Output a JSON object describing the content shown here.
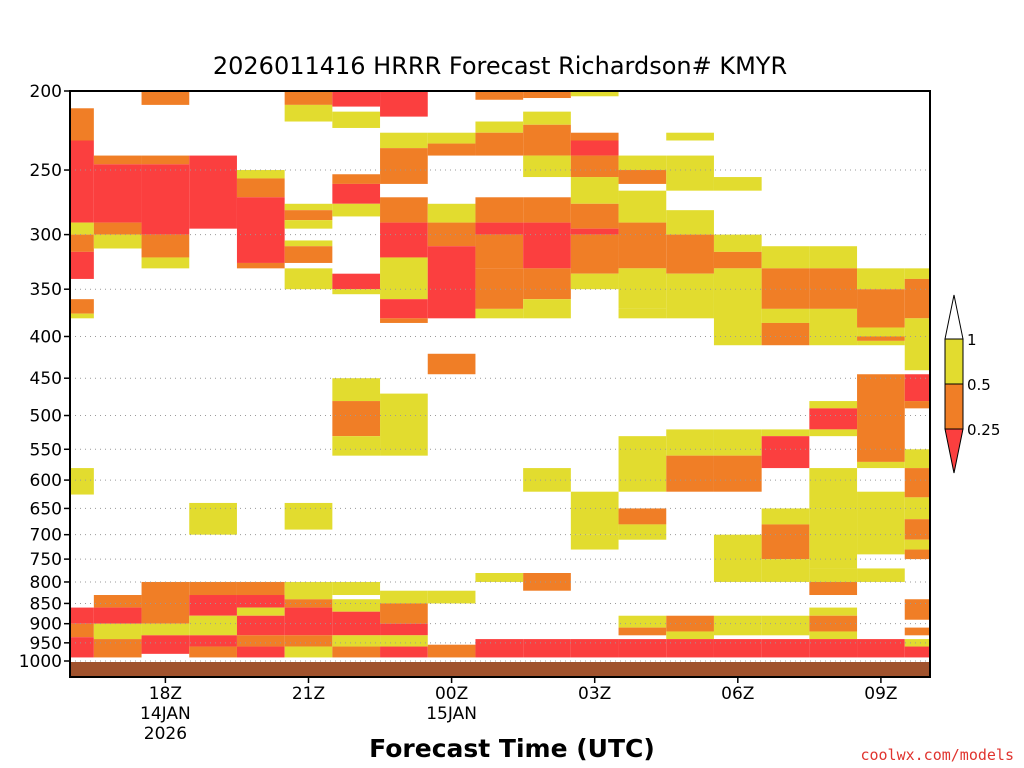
{
  "chart_data": {
    "type": "heatmap",
    "title": "2026011416 HRRR Forecast Richardson# KMYR",
    "xlabel": "Forecast Time (UTC)",
    "ylabel": "",
    "y_scale": "log",
    "y_reversed": true,
    "ylim": [
      1000,
      200
    ],
    "yticks": [
      200,
      250,
      300,
      350,
      400,
      450,
      500,
      550,
      600,
      650,
      700,
      750,
      800,
      850,
      900,
      950,
      1000
    ],
    "x_start": "2026-01-14 16Z",
    "x_hours": 18,
    "x_ticks": [
      {
        "hour": 18,
        "label": "18Z",
        "sub1": "14JAN",
        "sub2": "2026"
      },
      {
        "hour": 21,
        "label": "21Z",
        "sub1": "",
        "sub2": ""
      },
      {
        "hour": 24,
        "label": "00Z",
        "sub1": "15JAN",
        "sub2": ""
      },
      {
        "hour": 27,
        "label": "03Z",
        "sub1": "",
        "sub2": ""
      },
      {
        "hour": 30,
        "label": "06Z",
        "sub1": "",
        "sub2": ""
      },
      {
        "hour": 33,
        "label": "09Z",
        "sub1": "",
        "sub2": ""
      }
    ],
    "grid": "dotted horizontal at pressure ticks",
    "legend": {
      "placement": "right",
      "colors": {
        "lt_0_25": "#fb3f3f",
        "r_0_25_0_5": "#f07e26",
        "r_0_5_1": "#e2dc2f"
      },
      "labels": [
        "1",
        "0.5",
        "0.25"
      ]
    },
    "ground_color": "#a0522d",
    "category_codes": {
      "3": "Ri < 0.25",
      "2": "0.25-0.5",
      "1": "0.5-1"
    },
    "columns": [
      {
        "hour": 16,
        "cells": [
          [
            210,
            230,
            2
          ],
          [
            230,
            290,
            3
          ],
          [
            290,
            300,
            1
          ],
          [
            300,
            315,
            2
          ],
          [
            315,
            340,
            3
          ],
          [
            360,
            375,
            2
          ],
          [
            375,
            380,
            1
          ],
          [
            580,
            625,
            1
          ],
          [
            860,
            900,
            3
          ],
          [
            900,
            935,
            2
          ],
          [
            935,
            990,
            3
          ]
        ]
      },
      {
        "hour": 17,
        "cells": [
          [
            240,
            246,
            2
          ],
          [
            246,
            290,
            3
          ],
          [
            290,
            300,
            2
          ],
          [
            300,
            312,
            1
          ],
          [
            830,
            860,
            2
          ],
          [
            860,
            900,
            3
          ],
          [
            900,
            940,
            1
          ],
          [
            940,
            990,
            2
          ]
        ]
      },
      {
        "hour": 18,
        "cells": [
          [
            200,
            208,
            2
          ],
          [
            240,
            246,
            2
          ],
          [
            246,
            300,
            3
          ],
          [
            300,
            320,
            2
          ],
          [
            320,
            330,
            1
          ],
          [
            800,
            900,
            2
          ],
          [
            900,
            930,
            1
          ],
          [
            930,
            980,
            3
          ]
        ]
      },
      {
        "hour": 19,
        "cells": [
          [
            240,
            295,
            3
          ],
          [
            640,
            700,
            1
          ],
          [
            800,
            830,
            2
          ],
          [
            830,
            880,
            3
          ],
          [
            880,
            930,
            1
          ],
          [
            930,
            960,
            3
          ],
          [
            960,
            990,
            2
          ]
        ]
      },
      {
        "hour": 20,
        "cells": [
          [
            250,
            256,
            1
          ],
          [
            256,
            270,
            2
          ],
          [
            270,
            325,
            3
          ],
          [
            325,
            330,
            2
          ],
          [
            800,
            830,
            2
          ],
          [
            830,
            860,
            3
          ],
          [
            860,
            880,
            1
          ],
          [
            880,
            930,
            3
          ],
          [
            930,
            960,
            2
          ],
          [
            960,
            990,
            3
          ]
        ]
      },
      {
        "hour": 21,
        "cells": [
          [
            200,
            208,
            2
          ],
          [
            208,
            218,
            1
          ],
          [
            275,
            280,
            1
          ],
          [
            280,
            288,
            2
          ],
          [
            288,
            295,
            1
          ],
          [
            305,
            310,
            1
          ],
          [
            310,
            325,
            2
          ],
          [
            330,
            350,
            1
          ],
          [
            640,
            690,
            1
          ],
          [
            800,
            840,
            1
          ],
          [
            840,
            860,
            2
          ],
          [
            860,
            930,
            3
          ],
          [
            930,
            960,
            2
          ],
          [
            960,
            990,
            1
          ]
        ]
      },
      {
        "hour": 22,
        "cells": [
          [
            200,
            209,
            3
          ],
          [
            212,
            222,
            1
          ],
          [
            253,
            260,
            2
          ],
          [
            260,
            275,
            3
          ],
          [
            275,
            285,
            1
          ],
          [
            335,
            350,
            3
          ],
          [
            350,
            355,
            1
          ],
          [
            450,
            480,
            1
          ],
          [
            480,
            530,
            2
          ],
          [
            530,
            560,
            1
          ],
          [
            800,
            830,
            1
          ],
          [
            840,
            870,
            1
          ],
          [
            870,
            930,
            3
          ],
          [
            930,
            960,
            1
          ],
          [
            960,
            990,
            2
          ]
        ]
      },
      {
        "hour": 23,
        "cells": [
          [
            200,
            215,
            3
          ],
          [
            225,
            235,
            1
          ],
          [
            235,
            260,
            2
          ],
          [
            270,
            290,
            2
          ],
          [
            290,
            320,
            3
          ],
          [
            320,
            360,
            1
          ],
          [
            360,
            380,
            3
          ],
          [
            380,
            385,
            2
          ],
          [
            470,
            560,
            1
          ],
          [
            820,
            850,
            1
          ],
          [
            850,
            900,
            2
          ],
          [
            900,
            930,
            3
          ],
          [
            930,
            960,
            1
          ],
          [
            960,
            990,
            3
          ]
        ]
      },
      {
        "hour": 24,
        "cells": [
          [
            225,
            232,
            1
          ],
          [
            232,
            240,
            2
          ],
          [
            275,
            290,
            1
          ],
          [
            290,
            310,
            2
          ],
          [
            310,
            380,
            3
          ],
          [
            420,
            445,
            2
          ],
          [
            820,
            850,
            1
          ],
          [
            955,
            990,
            2
          ]
        ]
      },
      {
        "hour": 25,
        "cells": [
          [
            200,
            205,
            2
          ],
          [
            218,
            225,
            1
          ],
          [
            225,
            240,
            2
          ],
          [
            270,
            290,
            2
          ],
          [
            290,
            300,
            3
          ],
          [
            300,
            330,
            2
          ],
          [
            330,
            370,
            2
          ],
          [
            370,
            380,
            1
          ],
          [
            780,
            800,
            1
          ],
          [
            940,
            990,
            3
          ]
        ]
      },
      {
        "hour": 26,
        "cells": [
          [
            200,
            204,
            2
          ],
          [
            212,
            220,
            1
          ],
          [
            220,
            240,
            2
          ],
          [
            240,
            255,
            1
          ],
          [
            270,
            290,
            2
          ],
          [
            290,
            330,
            3
          ],
          [
            330,
            360,
            2
          ],
          [
            360,
            380,
            1
          ],
          [
            580,
            620,
            1
          ],
          [
            780,
            820,
            2
          ],
          [
            940,
            990,
            3
          ]
        ]
      },
      {
        "hour": 27,
        "cells": [
          [
            200,
            203,
            1
          ],
          [
            225,
            230,
            2
          ],
          [
            230,
            240,
            3
          ],
          [
            240,
            255,
            2
          ],
          [
            255,
            275,
            1
          ],
          [
            275,
            295,
            2
          ],
          [
            295,
            300,
            3
          ],
          [
            300,
            335,
            2
          ],
          [
            335,
            350,
            1
          ],
          [
            620,
            700,
            1
          ],
          [
            700,
            730,
            1
          ],
          [
            940,
            990,
            3
          ]
        ]
      },
      {
        "hour": 28,
        "cells": [
          [
            240,
            250,
            1
          ],
          [
            250,
            260,
            2
          ],
          [
            265,
            290,
            1
          ],
          [
            290,
            330,
            2
          ],
          [
            330,
            370,
            1
          ],
          [
            370,
            380,
            1
          ],
          [
            530,
            620,
            1
          ],
          [
            650,
            680,
            2
          ],
          [
            680,
            710,
            1
          ],
          [
            880,
            910,
            1
          ],
          [
            910,
            930,
            2
          ],
          [
            940,
            990,
            3
          ]
        ]
      },
      {
        "hour": 29,
        "cells": [
          [
            225,
            230,
            1
          ],
          [
            240,
            265,
            1
          ],
          [
            280,
            300,
            1
          ],
          [
            300,
            335,
            2
          ],
          [
            335,
            380,
            1
          ],
          [
            520,
            560,
            1
          ],
          [
            560,
            620,
            2
          ],
          [
            880,
            920,
            2
          ],
          [
            920,
            940,
            1
          ],
          [
            940,
            990,
            3
          ]
        ]
      },
      {
        "hour": 30,
        "cells": [
          [
            255,
            265,
            1
          ],
          [
            300,
            315,
            1
          ],
          [
            315,
            330,
            2
          ],
          [
            330,
            410,
            1
          ],
          [
            520,
            560,
            1
          ],
          [
            560,
            620,
            2
          ],
          [
            700,
            800,
            1
          ],
          [
            880,
            930,
            1
          ],
          [
            940,
            990,
            3
          ]
        ]
      },
      {
        "hour": 31,
        "cells": [
          [
            310,
            330,
            1
          ],
          [
            330,
            370,
            2
          ],
          [
            370,
            385,
            1
          ],
          [
            385,
            410,
            2
          ],
          [
            520,
            530,
            1
          ],
          [
            530,
            580,
            3
          ],
          [
            650,
            680,
            1
          ],
          [
            680,
            750,
            2
          ],
          [
            750,
            800,
            1
          ],
          [
            880,
            930,
            1
          ],
          [
            940,
            990,
            3
          ]
        ]
      },
      {
        "hour": 32,
        "cells": [
          [
            310,
            330,
            1
          ],
          [
            330,
            370,
            2
          ],
          [
            370,
            410,
            1
          ],
          [
            480,
            490,
            1
          ],
          [
            490,
            520,
            3
          ],
          [
            520,
            530,
            1
          ],
          [
            580,
            650,
            1
          ],
          [
            650,
            770,
            1
          ],
          [
            770,
            800,
            1
          ],
          [
            800,
            830,
            2
          ],
          [
            860,
            880,
            1
          ],
          [
            880,
            920,
            2
          ],
          [
            920,
            940,
            1
          ],
          [
            940,
            990,
            3
          ]
        ]
      },
      {
        "hour": 33,
        "cells": [
          [
            330,
            350,
            1
          ],
          [
            350,
            390,
            2
          ],
          [
            390,
            400,
            1
          ],
          [
            400,
            405,
            2
          ],
          [
            405,
            410,
            1
          ],
          [
            445,
            570,
            2
          ],
          [
            570,
            580,
            1
          ],
          [
            620,
            740,
            1
          ],
          [
            770,
            800,
            1
          ],
          [
            940,
            990,
            3
          ]
        ]
      },
      {
        "hour": 34,
        "cells": [
          [
            330,
            340,
            1
          ],
          [
            340,
            380,
            2
          ],
          [
            380,
            440,
            1
          ],
          [
            445,
            480,
            3
          ],
          [
            480,
            490,
            2
          ],
          [
            550,
            580,
            1
          ],
          [
            580,
            630,
            2
          ],
          [
            630,
            670,
            1
          ],
          [
            670,
            710,
            2
          ],
          [
            710,
            730,
            1
          ],
          [
            730,
            750,
            2
          ],
          [
            840,
            890,
            2
          ],
          [
            910,
            930,
            2
          ],
          [
            940,
            960,
            1
          ],
          [
            960,
            990,
            3
          ]
        ]
      }
    ]
  },
  "footer": {
    "credit": "coolwx.com/models"
  }
}
